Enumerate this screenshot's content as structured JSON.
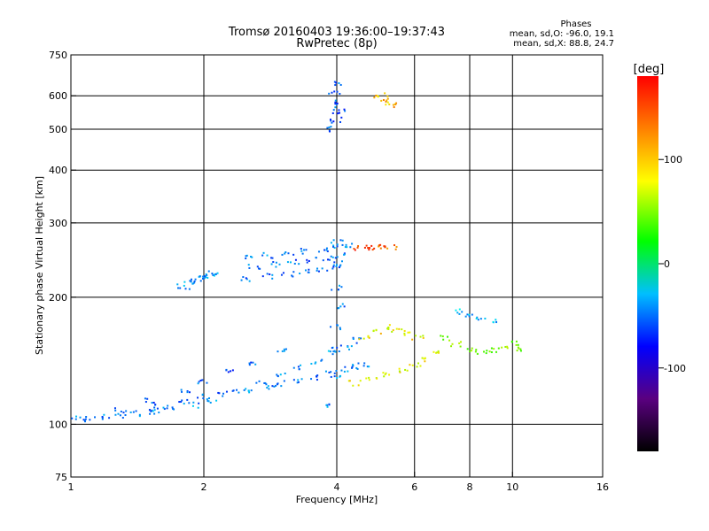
{
  "title_line1": "Tromsø 20160403 19:36:00–19:37:43",
  "title_line2": "RwPretec (8p)",
  "stats": {
    "heading": "Phases",
    "line_o": "mean, sd,O: -96.0, 19.1",
    "line_x": "mean, sd,X: 88.8, 24.7"
  },
  "colorbar": {
    "label": "[deg]",
    "ticks": [
      {
        "value": 100,
        "label": "100"
      },
      {
        "value": 0,
        "label": "0"
      },
      {
        "value": -100,
        "label": "-100"
      }
    ],
    "range": [
      -180,
      180
    ]
  },
  "chart_data": {
    "type": "scatter",
    "xlabel": "Frequency [MHz]",
    "ylabel": "Stationary phase Virtual Height [km]",
    "x_scale": "log",
    "y_scale": "log",
    "xlim": [
      1,
      16
    ],
    "ylim": [
      75,
      750
    ],
    "x_ticks": [
      1,
      2,
      4,
      6,
      8,
      10,
      16
    ],
    "y_ticks": [
      75,
      100,
      200,
      300,
      400,
      500,
      600,
      750
    ],
    "x_gridlines": [
      2,
      4,
      6,
      8,
      10
    ],
    "y_gridlines": [
      100,
      200,
      300,
      400,
      500,
      600
    ],
    "color_scale": "rainbow",
    "series": [
      {
        "traces": [
          {
            "x": [
              1.0,
              1.05,
              1.1,
              1.2,
              1.3,
              1.4,
              1.5,
              1.6,
              1.8,
              2.0,
              2.2,
              2.5,
              2.8,
              3.0,
              3.3,
              3.6,
              3.9,
              4.2,
              4.4,
              4.6
            ],
            "y": [
              103,
              103,
              103,
              104,
              105,
              106,
              108,
              110,
              113,
              116,
              118,
              120,
              123,
              125,
              127,
              129,
              132,
              135,
              137,
              138
            ],
            "phase": -100
          },
          {
            "x": [
              1.55,
              1.7,
              1.9,
              2.1,
              2.4,
              2.7,
              3.0,
              3.3,
              3.6,
              3.9,
              4.2,
              4.5
            ],
            "y": [
              107,
              109,
              111,
              114,
              119,
              125,
              131,
              136,
              141,
              147,
              152,
              158
            ],
            "phase": -95
          },
          {
            "x": [
              1.3,
              1.5,
              1.8,
              2.0,
              2.3,
              2.6,
              3.0
            ],
            "y": [
              108,
              114,
              120,
              126,
              133,
              140,
              150
            ],
            "phase": -110
          },
          {
            "x": [
              1.8,
              1.85,
              1.9,
              1.95,
              2.0,
              2.05,
              2.1
            ],
            "y": [
              212,
              215,
              218,
              221,
              224,
              226,
              228
            ],
            "phase": -90
          },
          {
            "x": [
              2.5,
              2.8,
              3.1,
              3.4,
              3.7,
              4.0,
              4.3
            ],
            "y": [
              248,
              251,
              254,
              257,
              260,
              262,
              264
            ],
            "phase": -100
          },
          {
            "x": [
              2.6,
              2.9,
              3.2,
              3.5,
              3.8,
              4.1
            ],
            "y": [
              236,
              239,
              242,
              245,
              248,
              251
            ],
            "phase": -105
          },
          {
            "x": [
              2.5,
              2.8,
              3.1,
              3.4,
              3.7,
              4.0
            ],
            "y": [
              221,
              224,
              227,
              230,
              233,
              236
            ],
            "phase": -108
          },
          {
            "x": [
              3.9,
              3.95,
              4.0,
              4.0,
              4.05,
              4.0,
              4.05,
              4.0
            ],
            "y": [
              110,
              130,
              150,
              170,
              190,
              210,
              240,
              270
            ],
            "phase": -100
          },
          {
            "x": [
              3.9,
              3.95,
              4.0,
              4.05,
              4.1,
              3.95,
              4.0
            ],
            "y": [
              500,
              520,
              540,
              560,
              580,
              610,
              640
            ],
            "phase": -110
          },
          {
            "x": [
              4.4,
              4.8,
              5.2,
              5.6,
              6.0,
              6.4,
              6.8
            ],
            "y": [
              125,
              128,
              131,
              134,
              138,
              143,
              148
            ],
            "phase": 95
          },
          {
            "x": [
              4.6,
              4.9,
              5.2,
              5.5,
              5.8,
              6.1
            ],
            "y": [
              160,
              165,
              170,
              168,
              164,
              160
            ],
            "phase": 100
          },
          {
            "x": [
              4.5,
              4.7,
              4.9,
              5.1,
              5.3
            ],
            "y": [
              262,
              262,
              262,
              263,
              263
            ],
            "phase": 150
          },
          {
            "x": [
              5.0,
              5.1,
              5.2,
              5.3
            ],
            "y": [
              600,
              590,
              580,
              570
            ],
            "phase": 120
          },
          {
            "x": [
              7.0,
              7.5,
              8.0,
              8.5,
              9.0,
              9.5,
              10.0,
              10.5
            ],
            "y": [
              160,
              155,
              150,
              148,
              150,
              152,
              155,
              150
            ],
            "phase": 60
          },
          {
            "x": [
              7.5,
              8.0,
              8.5,
              9.0
            ],
            "y": [
              185,
              180,
              178,
              176
            ],
            "phase": -80
          }
        ]
      }
    ]
  }
}
